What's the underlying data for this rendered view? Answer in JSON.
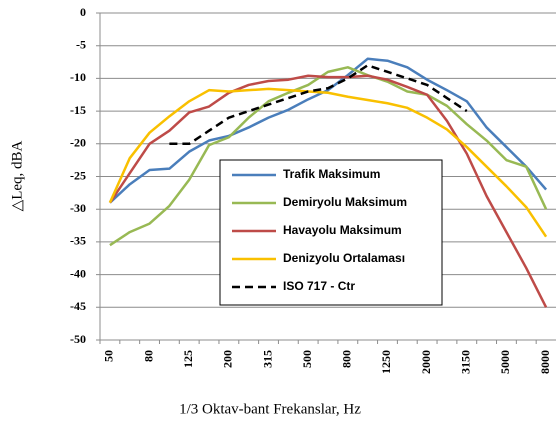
{
  "chart_data": {
    "type": "line",
    "x_label": "1/3 Oktav-bant Frekanslar, Hz",
    "y_label": "△Leq, dBA",
    "categories": [
      "50",
      null,
      "80",
      null,
      "125",
      null,
      "200",
      null,
      "315",
      null,
      "500",
      null,
      "800",
      null,
      "1250",
      null,
      "2000",
      null,
      "3150",
      null,
      "5000",
      null,
      "8000"
    ],
    "series": [
      {
        "name": "Trafik Maksimum",
        "color": "#4a7ebb",
        "values": [
          -29,
          -26.2,
          -24,
          -23.8,
          -21.2,
          -19.5,
          -18.8,
          -17.5,
          -16,
          -14.8,
          -13.2,
          -11.8,
          -9.5,
          -7,
          -7.3,
          -8.3,
          -10.2,
          -11.8,
          -13.5,
          -17.5,
          -20.5,
          -23.5,
          -27
        ]
      },
      {
        "name": "Demiryolu Maksimum",
        "color": "#98b954",
        "values": [
          -35.5,
          -33.5,
          -32.2,
          -29.5,
          -25.5,
          -20.2,
          -19,
          -16,
          -13.5,
          -12.2,
          -11,
          -9,
          -8.3,
          -9.5,
          -10.5,
          -12,
          -12.5,
          -14.2,
          -17,
          -19.5,
          -22.5,
          -23.5,
          -30
        ]
      },
      {
        "name": "Havayolu Maksimum",
        "color": "#be4b48",
        "values": [
          -29,
          -24.5,
          -20,
          -18,
          -15.2,
          -14.3,
          -12.2,
          -11,
          -10.4,
          -10.2,
          -9.6,
          -9.8,
          -9.8,
          -9.6,
          -10.2,
          -11.3,
          -12.5,
          -16.5,
          -21.5,
          -28,
          -33.5,
          -39,
          -45
        ]
      },
      {
        "name": "Denizyolu Ortalaması",
        "color": "#f9c000",
        "values": [
          -29,
          -22.2,
          -18.3,
          -15.8,
          -13.5,
          -11.8,
          -12,
          -11.8,
          -11.6,
          -11.8,
          -12,
          -12.2,
          -12.8,
          -13.3,
          -13.8,
          -14.5,
          -16,
          -17.8,
          -20.5,
          -23.5,
          -26.5,
          -29.7,
          -34.2
        ]
      },
      {
        "name": "ISO 717 - Ctr",
        "color": "#000000",
        "dashed": true,
        "values": [
          null,
          null,
          null,
          -20,
          -20,
          -18,
          -16,
          -15,
          -14,
          -13,
          -12,
          -11.5,
          -10,
          -8,
          -9,
          -10,
          -11,
          -13,
          -15,
          null,
          null,
          null,
          null
        ]
      }
    ],
    "ylim": [
      -50,
      0
    ],
    "yticks": [
      0,
      -5,
      -10,
      -15,
      -20,
      -25,
      -30,
      -35,
      -40,
      -45,
      -50
    ],
    "grid": true
  }
}
